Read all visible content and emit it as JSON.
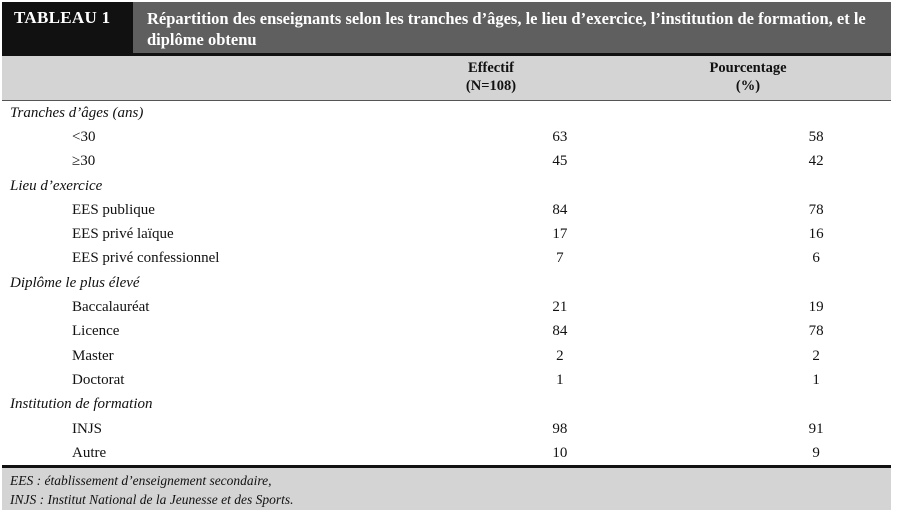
{
  "table": {
    "tag": "TABLEAU 1",
    "title": "Répartition des enseignants selon les tranches d’âges, le lieu d’exercice, l’institution de formation, et le diplôme obtenu",
    "col1_line1": "Effectif",
    "col1_line2": "(N=108)",
    "col2_line1": "Pourcentage",
    "col2_line2": "(%)",
    "sections": [
      {
        "label": "Tranches d’âges (ans)",
        "rows": [
          {
            "label": "<30",
            "effectif": "63",
            "pct": "58"
          },
          {
            "label": "≥30",
            "effectif": "45",
            "pct": "42"
          }
        ]
      },
      {
        "label": "Lieu d’exercice",
        "rows": [
          {
            "label": "EES publique",
            "effectif": "84",
            "pct": "78"
          },
          {
            "label": "EES privé laïque",
            "effectif": "17",
            "pct": "16"
          },
          {
            "label": "EES privé confessionnel",
            "effectif": "7",
            "pct": "6"
          }
        ]
      },
      {
        "label": "Diplôme le plus élevé",
        "rows": [
          {
            "label": "Baccalauréat",
            "effectif": "21",
            "pct": "19"
          },
          {
            "label": "Licence",
            "effectif": "84",
            "pct": "78"
          },
          {
            "label": "Master",
            "effectif": "2",
            "pct": "2"
          },
          {
            "label": "Doctorat",
            "effectif": "1",
            "pct": "1"
          }
        ]
      },
      {
        "label": "Institution de formation",
        "rows": [
          {
            "label": "INJS",
            "effectif": "98",
            "pct": "91"
          },
          {
            "label": "Autre",
            "effectif": "10",
            "pct": "9"
          }
        ]
      }
    ],
    "footnotes": [
      "EES : établissement d’enseignement secondaire,",
      "INJS : Institut National de la Jeunesse et des Sports."
    ]
  }
}
